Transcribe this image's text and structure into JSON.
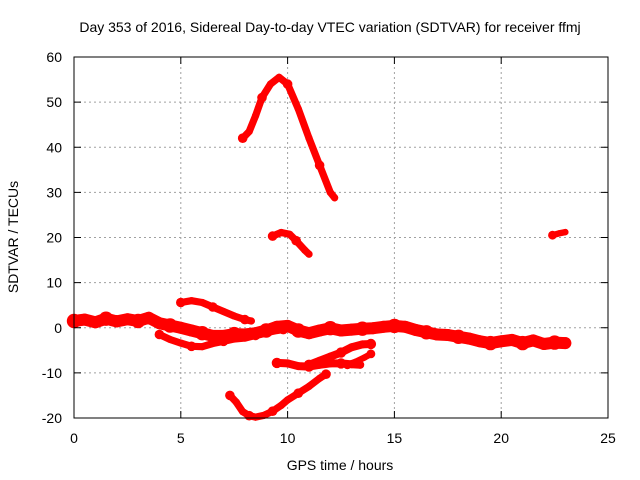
{
  "chart_data": {
    "type": "scatter",
    "title": "Day 353 of 2016, Sidereal Day-to-day VTEC variation (SDTVAR) for receiver ffmj",
    "xlabel": "GPS time / hours",
    "ylabel": "SDTVAR / TECUs",
    "xlim": [
      0,
      25
    ],
    "ylim": [
      -20,
      60
    ],
    "xticks": [
      0,
      5,
      10,
      15,
      20,
      25
    ],
    "yticks": [
      -20,
      -10,
      0,
      10,
      20,
      30,
      40,
      50,
      60
    ],
    "grid": true,
    "color": "#ff0000",
    "series": [
      {
        "name": "main-band",
        "width": 3.0,
        "points": [
          [
            0,
            1.5
          ],
          [
            0.5,
            1.8
          ],
          [
            1,
            1.2
          ],
          [
            1.5,
            2.0
          ],
          [
            2,
            1.4
          ],
          [
            2.5,
            1.9
          ],
          [
            3,
            1.5
          ],
          [
            3.5,
            2.2
          ],
          [
            4,
            1.0
          ],
          [
            4.5,
            0.5
          ],
          [
            5,
            0
          ],
          [
            5.5,
            -0.6
          ],
          [
            6,
            -1.2
          ],
          [
            6.5,
            -1.8
          ],
          [
            7,
            -1.8
          ],
          [
            7.5,
            -1.4
          ],
          [
            8,
            -1.5
          ],
          [
            8.5,
            -1.2
          ],
          [
            9,
            -0.6
          ],
          [
            9.5,
            0.2
          ],
          [
            10,
            0.4
          ],
          [
            10.5,
            -0.6
          ],
          [
            11,
            -1.2
          ],
          [
            11.5,
            -0.6
          ],
          [
            12,
            -0.1
          ],
          [
            12.5,
            -0.6
          ],
          [
            13,
            -0.4
          ],
          [
            13.5,
            -0.2
          ],
          [
            14,
            -0.1
          ],
          [
            14.5,
            0.2
          ],
          [
            15,
            0.4
          ],
          [
            15.5,
            0.2
          ],
          [
            16,
            -0.5
          ],
          [
            16.5,
            -1.0
          ],
          [
            17,
            -1.5
          ],
          [
            17.5,
            -1.6
          ],
          [
            18,
            -2.0
          ],
          [
            18.5,
            -2.4
          ],
          [
            19,
            -3.0
          ],
          [
            19.5,
            -3.4
          ],
          [
            20,
            -3.0
          ],
          [
            20.5,
            -2.7
          ],
          [
            21,
            -3.4
          ],
          [
            21.5,
            -2.8
          ],
          [
            22,
            -3.6
          ],
          [
            22.5,
            -3.3
          ],
          [
            23,
            -3.4
          ]
        ]
      },
      {
        "name": "lower-branch",
        "width": 1.8,
        "points": [
          [
            4,
            -1.5
          ],
          [
            4.5,
            -2.6
          ],
          [
            5,
            -3.4
          ],
          [
            5.5,
            -4.1
          ],
          [
            6,
            -4.2
          ],
          [
            6.5,
            -3.5
          ],
          [
            7,
            -3.0
          ],
          [
            7.5,
            -2.5
          ],
          [
            8,
            -2.3
          ],
          [
            8.5,
            -1.7
          ],
          [
            9,
            -1.1
          ],
          [
            9.5,
            -0.6
          ],
          [
            9.8,
            -0.4
          ]
        ]
      },
      {
        "name": "upper-branch",
        "width": 1.8,
        "points": [
          [
            5,
            5.6
          ],
          [
            5.5,
            6.0
          ],
          [
            6,
            5.6
          ],
          [
            6.5,
            4.6
          ],
          [
            7,
            3.6
          ],
          [
            7.5,
            2.6
          ],
          [
            8,
            1.8
          ],
          [
            8.3,
            1.5
          ]
        ]
      },
      {
        "name": "big-arc",
        "width": 1.8,
        "points": [
          [
            7.9,
            42
          ],
          [
            8.2,
            43.5
          ],
          [
            8.5,
            47
          ],
          [
            8.8,
            51
          ],
          [
            9.2,
            54
          ],
          [
            9.6,
            55.5
          ],
          [
            10,
            54
          ],
          [
            10.5,
            48.5
          ],
          [
            11,
            42
          ],
          [
            11.5,
            36
          ],
          [
            12,
            30
          ],
          [
            12.2,
            28.8
          ]
        ]
      },
      {
        "name": "small-arc",
        "width": 1.8,
        "points": [
          [
            9.3,
            20.3
          ],
          [
            9.7,
            21.1
          ],
          [
            10.1,
            20.7
          ],
          [
            10.4,
            19.3
          ],
          [
            10.8,
            17.2
          ],
          [
            11,
            16.3
          ]
        ]
      },
      {
        "name": "lower-curve",
        "width": 1.8,
        "points": [
          [
            7.3,
            -15
          ],
          [
            7.6,
            -16.5
          ],
          [
            7.9,
            -18.6
          ],
          [
            8.2,
            -19.5
          ],
          [
            8.5,
            -19.8
          ],
          [
            8.9,
            -19.4
          ],
          [
            9.3,
            -18.5
          ],
          [
            9.7,
            -17.2
          ],
          [
            10,
            -16.0
          ],
          [
            10.5,
            -14.5
          ],
          [
            11,
            -13.0
          ],
          [
            11.5,
            -11.2
          ],
          [
            11.8,
            -10.3
          ]
        ]
      },
      {
        "name": "mid-dip",
        "width": 2.0,
        "points": [
          [
            9.5,
            -7.8
          ],
          [
            10,
            -7.9
          ],
          [
            10.5,
            -8.5
          ],
          [
            11,
            -8.6
          ],
          [
            11.5,
            -8.2
          ],
          [
            12,
            -7.9
          ],
          [
            12.5,
            -7.9
          ],
          [
            13,
            -8.1
          ],
          [
            13.4,
            -8.2
          ]
        ]
      },
      {
        "name": "rising-arc",
        "width": 2.0,
        "points": [
          [
            11,
            -8.2
          ],
          [
            11.5,
            -7.3
          ],
          [
            12,
            -6.4
          ],
          [
            12.5,
            -5.5
          ],
          [
            13,
            -4.3
          ],
          [
            13.5,
            -3.7
          ],
          [
            13.9,
            -3.6
          ]
        ]
      },
      {
        "name": "tail-rise",
        "width": 1.6,
        "points": [
          [
            12.8,
            -8.2
          ],
          [
            13.2,
            -7.5
          ],
          [
            13.6,
            -6.6
          ],
          [
            13.9,
            -5.8
          ]
        ]
      },
      {
        "name": "late-segment",
        "width": 1.6,
        "points": [
          [
            22.4,
            20.5
          ],
          [
            22.7,
            20.9
          ],
          [
            23,
            21.2
          ]
        ]
      }
    ]
  }
}
